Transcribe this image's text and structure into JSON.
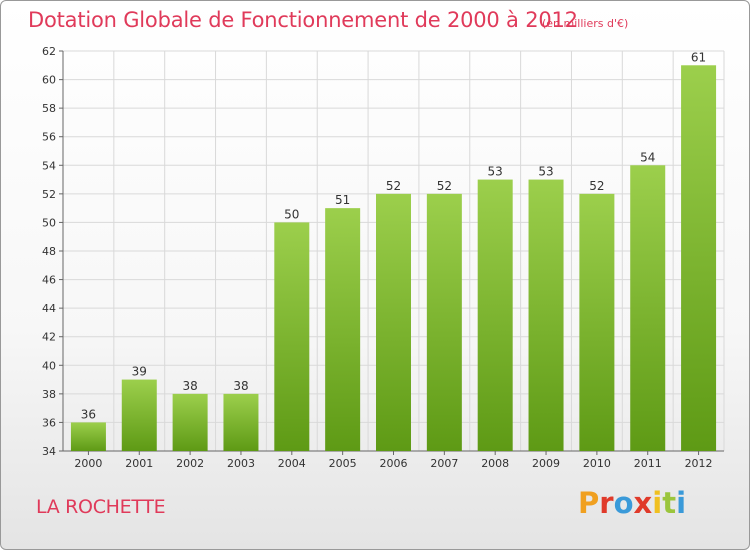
{
  "header": {
    "title": "Dotation Globale de Fonctionnement de 2000 à 2012",
    "subtitle": "(en milliers d'€)"
  },
  "footer": {
    "commune": "LA ROCHETTE",
    "logo_text": "Proxiti",
    "logo_colors": [
      "#f0a020",
      "#e03a2a",
      "#3a9ad9",
      "#e03a2a",
      "#f0c020",
      "#9bc53d",
      "#3a9ad9"
    ]
  },
  "colors": {
    "accent": "#e03a5a",
    "bar_top": "#9ccf4c",
    "bar_bottom": "#5e9a15",
    "grid": "#d9d9d9"
  },
  "chart_data": {
    "type": "bar",
    "categories": [
      "2000",
      "2001",
      "2002",
      "2003",
      "2004",
      "2005",
      "2006",
      "2007",
      "2008",
      "2009",
      "2010",
      "2011",
      "2012"
    ],
    "values": [
      36,
      39,
      38,
      38,
      50,
      51,
      52,
      52,
      53,
      53,
      52,
      54,
      61
    ],
    "title": "Dotation Globale de Fonctionnement de 2000 à 2012",
    "subtitle": "(en milliers d'€)",
    "ylim": [
      34,
      62
    ],
    "yticks": [
      34,
      36,
      38,
      40,
      42,
      44,
      46,
      48,
      50,
      52,
      54,
      56,
      58,
      60,
      62
    ],
    "grid": true,
    "data_labels": true
  }
}
